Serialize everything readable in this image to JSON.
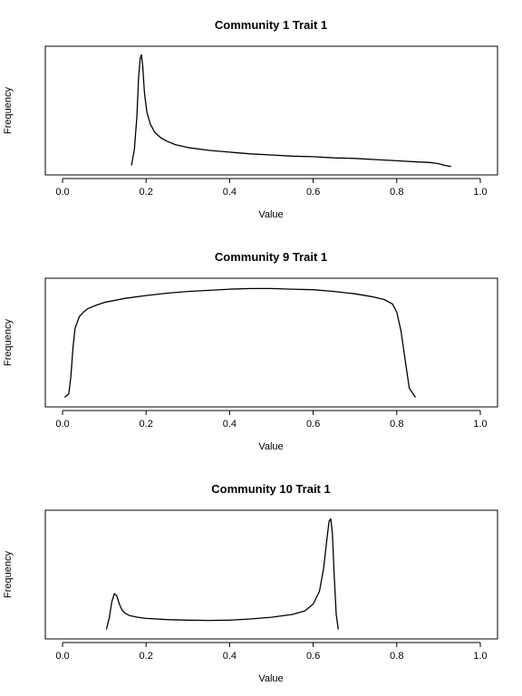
{
  "chart_data": [
    {
      "type": "line",
      "title": "Community 1 Trait 1",
      "xlabel": "Value",
      "ylabel": "Frequency",
      "xlim": [
        0.0,
        1.0
      ],
      "ylim": [
        0,
        1
      ],
      "xticks": [
        "0.0",
        "0.2",
        "0.4",
        "0.6",
        "0.8",
        "1.0"
      ],
      "yticks": [],
      "grid": false,
      "series": [
        {
          "x": [
            0.165,
            0.172,
            0.178,
            0.182,
            0.186,
            0.189,
            0.192,
            0.196,
            0.202,
            0.21,
            0.22,
            0.235,
            0.25,
            0.27,
            0.3,
            0.35,
            0.4,
            0.45,
            0.5,
            0.55,
            0.6,
            0.65,
            0.7,
            0.75,
            0.8,
            0.85,
            0.88,
            0.9,
            0.915,
            0.93
          ],
          "y": [
            0.02,
            0.16,
            0.45,
            0.78,
            0.95,
            0.98,
            0.88,
            0.65,
            0.48,
            0.38,
            0.31,
            0.26,
            0.23,
            0.2,
            0.175,
            0.15,
            0.135,
            0.12,
            0.11,
            0.1,
            0.095,
            0.085,
            0.08,
            0.07,
            0.06,
            0.05,
            0.045,
            0.035,
            0.02,
            0.01
          ]
        }
      ]
    },
    {
      "type": "line",
      "title": "Community 9 Trait 1",
      "xlabel": "Value",
      "ylabel": "Frequency",
      "xlim": [
        0.0,
        1.0
      ],
      "ylim": [
        0,
        1
      ],
      "xticks": [
        "0.0",
        "0.2",
        "0.4",
        "0.6",
        "0.8",
        "1.0"
      ],
      "yticks": [],
      "grid": false,
      "series": [
        {
          "x": [
            0.005,
            0.015,
            0.02,
            0.025,
            0.03,
            0.04,
            0.05,
            0.06,
            0.08,
            0.1,
            0.15,
            0.2,
            0.25,
            0.3,
            0.35,
            0.4,
            0.45,
            0.5,
            0.55,
            0.6,
            0.65,
            0.7,
            0.74,
            0.77,
            0.79,
            0.8,
            0.81,
            0.82,
            0.83,
            0.845
          ],
          "y": [
            0.02,
            0.05,
            0.2,
            0.45,
            0.62,
            0.72,
            0.76,
            0.79,
            0.82,
            0.845,
            0.88,
            0.905,
            0.925,
            0.94,
            0.95,
            0.96,
            0.965,
            0.965,
            0.96,
            0.955,
            0.94,
            0.92,
            0.895,
            0.87,
            0.83,
            0.76,
            0.6,
            0.35,
            0.1,
            0.02
          ]
        }
      ]
    },
    {
      "type": "line",
      "title": "Community 10 Trait 1",
      "xlabel": "Value",
      "ylabel": "Frequency",
      "xlim": [
        0.0,
        1.0
      ],
      "ylim": [
        0,
        1
      ],
      "xticks": [
        "0.0",
        "0.2",
        "0.4",
        "0.6",
        "0.8",
        "1.0"
      ],
      "yticks": [],
      "grid": false,
      "series": [
        {
          "x": [
            0.105,
            0.112,
            0.118,
            0.124,
            0.13,
            0.136,
            0.142,
            0.15,
            0.16,
            0.18,
            0.2,
            0.25,
            0.3,
            0.35,
            0.4,
            0.45,
            0.5,
            0.55,
            0.58,
            0.6,
            0.615,
            0.625,
            0.632,
            0.638,
            0.642,
            0.646,
            0.65,
            0.655,
            0.66
          ],
          "y": [
            0.02,
            0.12,
            0.26,
            0.33,
            0.31,
            0.24,
            0.19,
            0.16,
            0.14,
            0.125,
            0.115,
            0.105,
            0.1,
            0.098,
            0.1,
            0.11,
            0.125,
            0.15,
            0.18,
            0.24,
            0.35,
            0.55,
            0.78,
            0.96,
            0.98,
            0.85,
            0.5,
            0.15,
            0.02
          ]
        }
      ]
    }
  ]
}
